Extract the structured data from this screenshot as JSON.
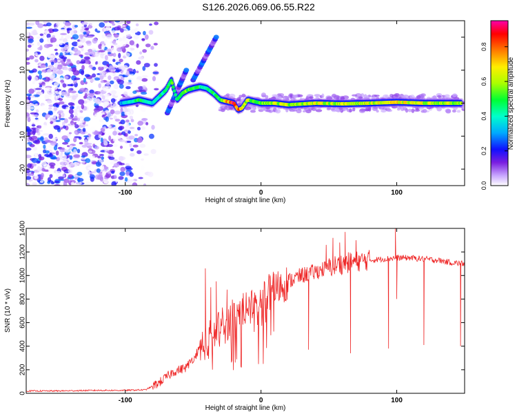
{
  "title": "S126.2026.069.06.55.R22",
  "chart_data": [
    {
      "type": "heatmap",
      "xlabel": "Height of straight line (km)",
      "ylabel": "Frequency (Hz)",
      "xlim": [
        -173,
        150
      ],
      "ylim": [
        -25,
        25
      ],
      "xticks": [
        -100,
        0,
        100
      ],
      "yticks": [
        -20,
        -10,
        0,
        10,
        20
      ],
      "colorbar": {
        "label": "Normalized spectral amplitude",
        "range": [
          0,
          0.95
        ],
        "ticks": [
          0.0,
          0.2,
          0.4,
          0.6,
          0.8
        ],
        "colormap": [
          "#ffffff",
          "#e8d8ff",
          "#c090ff",
          "#8a2be2",
          "#2020ff",
          "#00ccff",
          "#00ff80",
          "#ffff00",
          "#ff8000",
          "#ff0000",
          "#ff00a0"
        ]
      },
      "ridge": {
        "x": [
          -103,
          -95,
          -90,
          -85,
          -80,
          -75,
          -70,
          -66,
          -62,
          -58,
          -54,
          -50,
          -45,
          -40,
          -35,
          -30,
          -25,
          -20,
          -17,
          -14,
          -10,
          -5,
          0,
          10,
          20,
          40,
          60,
          80,
          100,
          120,
          148
        ],
        "y": [
          0,
          0.5,
          1,
          0.5,
          0,
          2,
          4,
          7,
          1,
          3,
          4,
          4.5,
          5,
          4.5,
          3,
          1,
          0.5,
          0,
          -2,
          -1.5,
          1,
          0.5,
          0,
          0,
          -0.5,
          0,
          -0.2,
          0,
          0.3,
          0,
          0
        ],
        "amplitude": [
          0.3,
          0.4,
          0.5,
          0.4,
          0.35,
          0.4,
          0.45,
          0.5,
          0.45,
          0.5,
          0.55,
          0.5,
          0.45,
          0.4,
          0.45,
          0.5,
          0.7,
          0.9,
          0.8,
          0.7,
          0.6,
          0.55,
          0.55,
          0.6,
          0.6,
          0.62,
          0.6,
          0.62,
          0.65,
          0.62,
          0.55
        ]
      },
      "diagonal_tracks": [
        {
          "x": [
            -69,
            -55
          ],
          "y": [
            -3,
            10
          ]
        },
        {
          "x": [
            -50,
            -33
          ],
          "y": [
            7,
            20
          ]
        }
      ],
      "noise_region_x": [
        -173,
        -85
      ]
    },
    {
      "type": "line",
      "xlabel": "Height of straight line (km)",
      "ylabel": "SNR (10 * v/v)",
      "xlim": [
        -173,
        150
      ],
      "ylim": [
        0,
        1400
      ],
      "xticks": [
        -100,
        0,
        100
      ],
      "yticks": [
        0,
        200,
        400,
        600,
        800,
        1000,
        1200,
        1400
      ],
      "color": "#ee2222",
      "series": [
        {
          "x": [
            -173,
            -150,
            -120,
            -100,
            -85,
            -75,
            -65,
            -55,
            -45,
            -40,
            -35,
            -30,
            -25,
            -20,
            -15,
            -10,
            -5,
            0,
            10,
            20,
            30,
            40,
            50,
            60,
            70,
            80,
            90,
            100,
            110,
            120,
            130,
            140,
            150
          ],
          "values": [
            20,
            20,
            25,
            25,
            30,
            90,
            180,
            220,
            380,
            450,
            500,
            560,
            600,
            650,
            700,
            730,
            780,
            820,
            880,
            950,
            1000,
            1030,
            1070,
            1100,
            1120,
            1130,
            1140,
            1150,
            1150,
            1140,
            1130,
            1110,
            1100
          ]
        }
      ],
      "spikes": [
        {
          "x": -41,
          "y": 1060
        },
        {
          "x": -37,
          "y": 900
        },
        {
          "x": -33,
          "y": 950
        },
        {
          "x": -25,
          "y": 880
        },
        {
          "x": -10,
          "y": 700
        },
        {
          "x": 35,
          "y": 370
        },
        {
          "x": 48,
          "y": 1260
        },
        {
          "x": 53,
          "y": 1320
        },
        {
          "x": 58,
          "y": 1280
        },
        {
          "x": 62,
          "y": 1370
        },
        {
          "x": 66,
          "y": 340
        },
        {
          "x": 70,
          "y": 1300
        },
        {
          "x": 94,
          "y": 380
        },
        {
          "x": 99,
          "y": 1400
        },
        {
          "x": 100,
          "y": 800
        },
        {
          "x": 120,
          "y": 410
        },
        {
          "x": 147,
          "y": 400
        }
      ]
    }
  ]
}
